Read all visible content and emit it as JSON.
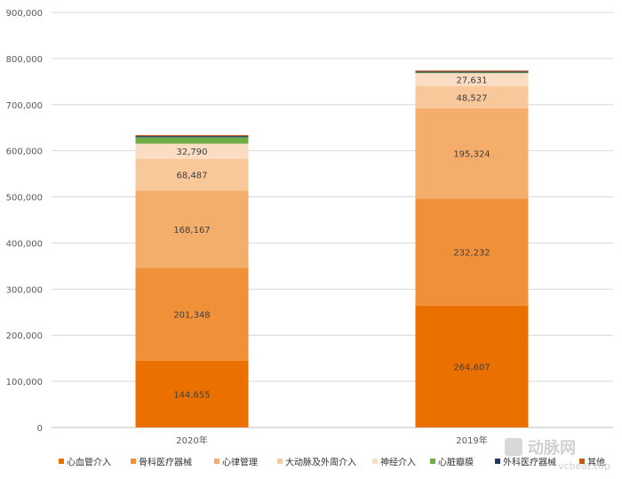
{
  "chart_data": {
    "type": "bar",
    "stacked": true,
    "title": "",
    "xlabel": "",
    "ylabel": "",
    "categories": [
      "2020年",
      "2019年"
    ],
    "ylim": [
      0,
      900000
    ],
    "yticks": [
      "0",
      "100,000",
      "200,000",
      "300,000",
      "400,000",
      "500,000",
      "600,000",
      "700,000",
      "800,000",
      "900,000"
    ],
    "grid": true,
    "legend_position": "bottom",
    "series": [
      {
        "name": "心血管介入",
        "color": "#EC7000",
        "values": [
          144655,
          264607
        ],
        "labels": [
          "144,655",
          "264,607"
        ]
      },
      {
        "name": "骨科医疗器械",
        "color": "#F0913A",
        "values": [
          201348,
          232232
        ],
        "labels": [
          "201,348",
          "232,232"
        ]
      },
      {
        "name": "心律管理",
        "color": "#F5AD6B",
        "values": [
          168167,
          195324
        ],
        "labels": [
          "168,167",
          "195,324"
        ]
      },
      {
        "name": "大动脉及外周介入",
        "color": "#F8C79A",
        "values": [
          68487,
          48527
        ],
        "labels": [
          "68,487",
          "48,527"
        ]
      },
      {
        "name": "神经介入",
        "color": "#FBDDC4",
        "values": [
          32790,
          27631
        ],
        "labels": [
          "32,790",
          "27,631"
        ]
      },
      {
        "name": "心脏瓣膜",
        "color": "#70AD47",
        "values": [
          14000,
          1500
        ],
        "labels": [
          "",
          ""
        ]
      },
      {
        "name": "外科医疗器械",
        "color": "#203864",
        "values": [
          2500,
          2200
        ],
        "labels": [
          "",
          ""
        ]
      },
      {
        "name": "其他",
        "color": "#C55A11",
        "values": [
          2000,
          2000
        ],
        "labels": [
          "",
          ""
        ]
      }
    ]
  },
  "watermark": {
    "logo_text": "动脉网",
    "url_text": "vcbeat.top"
  }
}
